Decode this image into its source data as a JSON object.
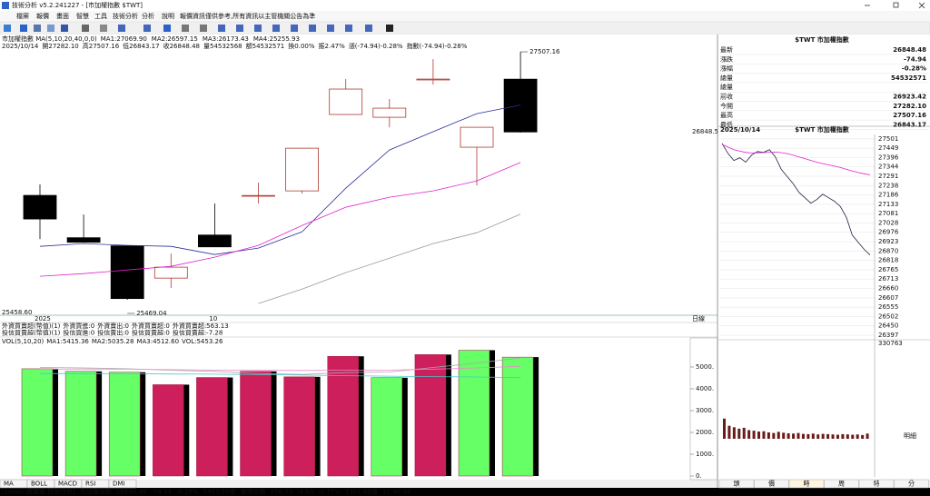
{
  "window": {
    "title": "技術分析 v5.2.241227 - [市加權指數 $TWT]"
  },
  "menu": [
    "檔案",
    "報價",
    "畫面",
    "智慧",
    "工具",
    "技術分析",
    "分析",
    "說明",
    "報價資訊僅供參考,所有資訊以主管機關公告為準"
  ],
  "main_info": {
    "line1": "市加權指數 MA(5,10,20,40,0,0)",
    "line2": [
      "2025/10/14",
      "開27282.10",
      "高27507.16",
      "低26843.17",
      "收26848.48",
      "量54532568",
      "額54532571",
      "換0.00%",
      "振2.47%",
      "漲(-74.94)-0.28%",
      "指數(-74.94)-0.28%"
    ],
    "period": "日線"
  },
  "indicator_rows": [
    [
      {
        "text": "外資買賣超(幣值)(1)",
        "color": "#222222"
      },
      {
        "text": "外資買進:0",
        "color": "#1f3fbf"
      },
      {
        "text": "外資賣出:0",
        "color": "#cc33cc"
      },
      {
        "text": "外資買賣超:0",
        "color": "#888888"
      },
      {
        "text": "外資買賣超:563.13",
        "color": "#22aacc"
      }
    ],
    [
      {
        "text": "投信買賣超(幣值)(1)",
        "color": "#222222"
      },
      {
        "text": "投信買進:0",
        "color": "#1f3fbf"
      },
      {
        "text": "投信賣出:0",
        "color": "#cc33cc"
      },
      {
        "text": "投信買賣超:0",
        "color": "#888888"
      },
      {
        "text": "投信買賣超:-7.28",
        "color": "#22aacc"
      }
    ]
  ],
  "tabs": [
    "MA",
    "BOLL",
    "MACD",
    "RSI",
    "DMI"
  ],
  "quote": {
    "title": "$TWT 市加權指數",
    "rows": [
      {
        "label": "最新",
        "value": "26848.48",
        "color": "#008800"
      },
      {
        "label": "漲跌",
        "value": "-74.94",
        "color": "#008800"
      },
      {
        "label": "漲幅",
        "value": "-0.28%",
        "color": "#008800"
      },
      {
        "label": "總量",
        "value": "54532571",
        "color": "#111111"
      },
      {
        "label": "總量"
      },
      {
        "label": "前收",
        "value": "26923.42",
        "color": "#111111"
      },
      {
        "label": "今開",
        "value": "27282.10",
        "color": "#cc0000"
      },
      {
        "label": "最高",
        "value": "27507.16",
        "color": "#cc0000"
      },
      {
        "label": "最低",
        "value": "26843.17",
        "color": "#008800"
      }
    ]
  },
  "intraday_buttons": [
    "頭",
    "價",
    "時",
    "周",
    "特",
    "分"
  ],
  "status": [
    {
      "text": "[yeswin鑫策略 技術分析]",
      "color": "#ff4444"
    },
    {
      "text": "市加權指數",
      "color": "#ffffff"
    },
    {
      "text": "26848.48",
      "color": "#33dd33"
    },
    {
      "text": "-74.94",
      "color": "#33dd33"
    },
    {
      "text": "-0.28%",
      "color": "#33dd33"
    },
    {
      "text": "5453.26億",
      "color": "#ffff66"
    },
    {
      "text": "櫃檯指數",
      "color": "#ffffff"
    },
    {
      "text": "256.73",
      "color": "#33dd33"
    },
    {
      "text": "-4.63",
      "color": "#33dd33"
    },
    {
      "text": "-1.77%",
      "color": "#33dd33"
    },
    {
      "text": "1301.68億",
      "color": "#ffff66"
    },
    {
      "text": "12:40:34",
      "color": "#ffffff"
    }
  ],
  "chart_data": [
    {
      "type": "candlestick",
      "categories": [
        "2025",
        null,
        null,
        null,
        "10",
        null,
        null,
        null,
        null,
        null,
        null,
        null
      ],
      "open": [
        26327,
        25979,
        25912,
        25647,
        26001,
        26320,
        26364,
        26992,
        26969,
        27276,
        26723,
        27282.1
      ],
      "high": [
        26417,
        26170,
        25912,
        25849,
        26260,
        26432,
        26715,
        27283,
        27119,
        27447,
        26887,
        27507.16
      ],
      "low": [
        25968,
        25942,
        25469.04,
        25565,
        25904,
        26260,
        26342,
        26992,
        26887,
        27238,
        26409,
        26843.17
      ],
      "close": [
        26133,
        25942,
        25479,
        25737,
        25904,
        26326,
        26715,
        27201,
        27044,
        27283,
        26887,
        26848.48
      ],
      "up_color": "#b03a2e",
      "down_color": "#000000",
      "series": [
        {
          "name": "MA1:27069.90",
          "color": "#2a2f9a",
          "values": [
            25908,
            25931,
            25916,
            25908,
            25841,
            25894,
            26028,
            26386,
            26700,
            26850,
            26999,
            27069.9
          ]
        },
        {
          "name": "MA2:26597.15",
          "color": "#e020d0",
          "values": [
            25662,
            25684,
            25714,
            25744,
            25819,
            25916,
            26080,
            26230,
            26312,
            26364,
            26446,
            26597.15
          ]
        },
        {
          "name": "MA3:26173.43",
          "color": "#999999",
          "values": [
            null,
            null,
            null,
            null,
            null,
            25438,
            25557,
            25692,
            25811,
            25931,
            26020,
            26173.43
          ]
        },
        {
          "name": "MA4:25255.93",
          "color": "#e0a020",
          "values": [
            null,
            null,
            null,
            null,
            null,
            null,
            null,
            null,
            null,
            null,
            null,
            null
          ]
        }
      ],
      "high_label": "27507.16",
      "low_label": "25469.04",
      "scale_low_label": "25458.60",
      "last_price_label": "26848.5",
      "ylim": [
        25342,
        27597
      ]
    },
    {
      "type": "bar",
      "title": "VOL(5,10,20)",
      "values": [
        4920,
        4800,
        4760,
        4190,
        4520,
        4800,
        4550,
        5490,
        4510,
        5570,
        5770,
        5453.26
      ],
      "colors": [
        "#66ff66",
        "#66ff66",
        "#66ff66",
        "#cc1f5c",
        "#cc1f5c",
        "#cc1f5c",
        "#cc1f5c",
        "#cc1f5c",
        "#66ff66",
        "#cc1f5c",
        "#66ff66",
        "#66ff66"
      ],
      "series": [
        {
          "name": "MA1:5415.36",
          "color": "#aaaaaa",
          "values": [
            4980,
            4960,
            4920,
            4850,
            4800,
            4700,
            4660,
            4740,
            4770,
            4980,
            5180,
            5415.36
          ]
        },
        {
          "name": "MA2:5035.28",
          "color": "#ee88cc",
          "values": [
            4900,
            4910,
            4900,
            4880,
            4860,
            4850,
            4840,
            4850,
            4860,
            4900,
            4960,
            5035.28
          ]
        },
        {
          "name": "MA3:4512.60",
          "color": "#44cccc",
          "values": [
            4700,
            4700,
            4690,
            4680,
            4670,
            4650,
            4630,
            4600,
            4580,
            4560,
            4540,
            4512.6
          ]
        }
      ],
      "current_label": "VOL:5453.26",
      "ylim": [
        0,
        6000
      ],
      "yticks": [
        {
          "value": 0,
          "label": "0."
        },
        {
          "value": 1000,
          "label": "1000."
        },
        {
          "value": 2000,
          "label": "2000."
        },
        {
          "value": 3000,
          "label": "3000."
        },
        {
          "value": 4000,
          "label": "4000."
        },
        {
          "value": 5000,
          "label": "5000."
        }
      ]
    },
    {
      "type": "line",
      "title": "$TWT 市加權指數",
      "date": "2025/10/14",
      "series": [
        {
          "color": "#222244",
          "values": [
            27476,
            27420,
            27380,
            27395,
            27370,
            27410,
            27430,
            27425,
            27440,
            27400,
            27330,
            27290,
            27250,
            27200,
            27170,
            27140,
            27160,
            27190,
            27170,
            27150,
            27120,
            27060,
            26960,
            26920,
            26880,
            26848.48
          ]
        },
        {
          "color": "#e020d0",
          "values": [
            27470,
            27455,
            27440,
            27432,
            27425,
            27422,
            27423,
            27424,
            27426,
            27427,
            27424,
            27418,
            27410,
            27400,
            27390,
            27380,
            27370,
            27362,
            27355,
            27348,
            27340,
            27330,
            27320,
            27312,
            27305,
            27299
          ]
        }
      ],
      "ylim": [
        26382,
        27526
      ],
      "yticks": [
        27501,
        27449,
        27396,
        27344,
        27291,
        27238,
        27186,
        27133,
        27081,
        27028,
        26976,
        26923,
        26870,
        26818,
        26765,
        26713,
        26660,
        26607,
        26555,
        26502,
        26450,
        26397
      ],
      "grid": true
    },
    {
      "type": "bar",
      "color": "#6b1a1a",
      "values": [
        70000,
        45000,
        40000,
        35000,
        38000,
        30000,
        28000,
        25000,
        26000,
        22000,
        20000,
        24000,
        21000,
        19000,
        18000,
        20000,
        17000,
        16000,
        18000,
        15000,
        17000,
        16000,
        15000,
        14000,
        16000,
        15000,
        14000,
        15000,
        13000,
        18000
      ],
      "note": "明細",
      "ylim": [
        0,
        330763
      ],
      "yticks": [
        330763
      ]
    }
  ]
}
